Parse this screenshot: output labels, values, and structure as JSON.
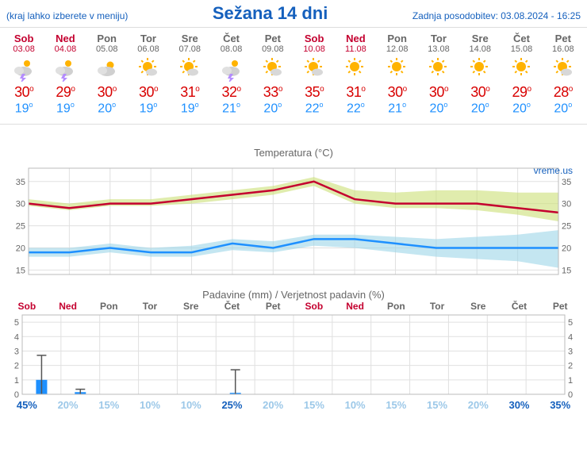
{
  "header": {
    "menu_hint": "(kraj lahko izberete v meniju)",
    "title": "Sežana 14 dni",
    "updated": "Zadnja posodobitev: 03.08.2024 - 16:25"
  },
  "colors": {
    "weekend": "#c4002f",
    "weekday": "#666",
    "link": "#1560bd",
    "hi": "#d80000",
    "lo": "#1e90ff",
    "temp_hi_line": "#c4002f",
    "temp_hi_band": "#cce077",
    "temp_lo_line": "#1e90ff",
    "temp_lo_band": "#9cd6e8",
    "grid": "#e0e0e0",
    "axis": "#bbb",
    "precip_bar": "#1e90ff",
    "precip_err": "#555"
  },
  "days": [
    {
      "dow": "Sob",
      "date": "03.08",
      "weekend": true,
      "icon": "storm",
      "hi": 30,
      "lo": 19
    },
    {
      "dow": "Ned",
      "date": "04.08",
      "weekend": true,
      "icon": "storm",
      "hi": 29,
      "lo": 19
    },
    {
      "dow": "Pon",
      "date": "05.08",
      "weekend": false,
      "icon": "cloud-sun",
      "hi": 30,
      "lo": 20
    },
    {
      "dow": "Tor",
      "date": "06.08",
      "weekend": false,
      "icon": "sun-cloud",
      "hi": 30,
      "lo": 19
    },
    {
      "dow": "Sre",
      "date": "07.08",
      "weekend": false,
      "icon": "sun-cloud",
      "hi": 31,
      "lo": 19
    },
    {
      "dow": "Čet",
      "date": "08.08",
      "weekend": false,
      "icon": "storm",
      "hi": 32,
      "lo": 21
    },
    {
      "dow": "Pet",
      "date": "09.08",
      "weekend": false,
      "icon": "sun-cloud",
      "hi": 33,
      "lo": 20
    },
    {
      "dow": "Sob",
      "date": "10.08",
      "weekend": true,
      "icon": "sun-cloud",
      "hi": 35,
      "lo": 22
    },
    {
      "dow": "Ned",
      "date": "11.08",
      "weekend": true,
      "icon": "sun",
      "hi": 31,
      "lo": 22
    },
    {
      "dow": "Pon",
      "date": "12.08",
      "weekend": false,
      "icon": "sun",
      "hi": 30,
      "lo": 21
    },
    {
      "dow": "Tor",
      "date": "13.08",
      "weekend": false,
      "icon": "sun",
      "hi": 30,
      "lo": 20
    },
    {
      "dow": "Sre",
      "date": "14.08",
      "weekend": false,
      "icon": "sun",
      "hi": 30,
      "lo": 20
    },
    {
      "dow": "Čet",
      "date": "15.08",
      "weekend": false,
      "icon": "sun",
      "hi": 29,
      "lo": 20
    },
    {
      "dow": "Pet",
      "date": "16.08",
      "weekend": false,
      "icon": "sun-cloud",
      "hi": 28,
      "lo": 20
    }
  ],
  "temp_chart": {
    "title": "Temperatura (°C)",
    "watermark": "vreme.us",
    "ylim": [
      14,
      38
    ],
    "yticks": [
      15,
      20,
      25,
      30,
      35
    ],
    "hi": [
      30,
      29,
      30,
      30,
      31,
      32,
      33,
      35,
      31,
      30,
      30,
      30,
      29,
      28
    ],
    "hi_upper": [
      31,
      30,
      31,
      31,
      32,
      33,
      34,
      36,
      33,
      32.5,
      33,
      33,
      32.5,
      32.5
    ],
    "hi_lower": [
      29.5,
      28.5,
      29.5,
      29.5,
      30,
      31,
      32,
      34,
      30,
      29,
      29,
      28.5,
      27.5,
      26
    ],
    "lo": [
      19,
      19,
      20,
      19,
      19,
      21,
      20,
      22,
      22,
      21,
      20,
      20,
      20,
      20
    ],
    "lo_upper": [
      20,
      20,
      21,
      20,
      20.5,
      22,
      21.5,
      23,
      23,
      22.5,
      22,
      22.5,
      23,
      24
    ],
    "lo_lower": [
      18,
      18,
      19,
      18,
      18,
      19.5,
      19,
      20.5,
      20,
      19,
      18,
      17.5,
      17,
      15.5
    ]
  },
  "precip_chart": {
    "title": "Padavine (mm) / Verjetnost padavin (%)",
    "ylim": [
      0,
      5.5
    ],
    "yticks": [
      0,
      1,
      2,
      3,
      4,
      5
    ],
    "mm": [
      1.0,
      0.15,
      0,
      0,
      0,
      0.1,
      0,
      0,
      0,
      0,
      0,
      0,
      0,
      0
    ],
    "err": [
      2.7,
      0.35,
      0,
      0,
      0,
      1.7,
      0,
      0,
      0,
      0,
      0,
      0,
      0,
      0
    ],
    "pct": [
      45,
      20,
      15,
      10,
      10,
      25,
      20,
      15,
      10,
      15,
      15,
      20,
      30,
      35
    ],
    "pct_color_threshold": 25
  }
}
